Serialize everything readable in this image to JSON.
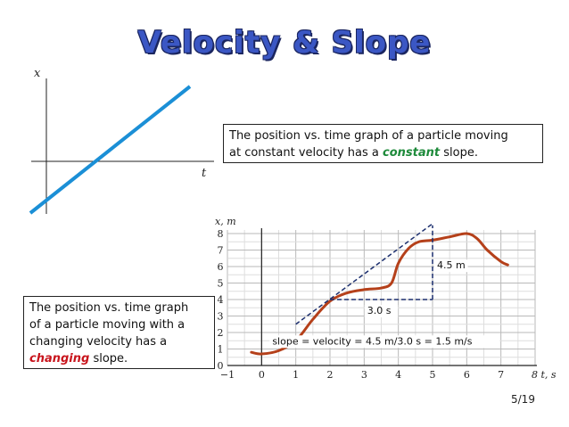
{
  "slide": {
    "title": "Velocity & Slope",
    "page_number": "5/19"
  },
  "top_graph": {
    "y_label": "x",
    "x_label": "t"
  },
  "box_constant": {
    "line1": "The position vs. time graph of a particle moving",
    "line2_pre": "at constant velocity has a ",
    "emphasis": "constant",
    "line2_post": " slope."
  },
  "box_changing": {
    "line1": "The position vs. time graph",
    "line2": "of a particle moving with a",
    "line3": "changing velocity has a",
    "emphasis": "changing",
    "line4_post": " slope."
  },
  "chart_data": {
    "type": "line",
    "xlabel": "t, s",
    "ylabel": "x, m",
    "xlim": [
      -1,
      8
    ],
    "ylim": [
      0,
      8
    ],
    "x_ticks": [
      -1,
      0,
      1,
      2,
      3,
      4,
      5,
      6,
      7,
      8
    ],
    "y_ticks": [
      0,
      1,
      2,
      3,
      4,
      5,
      6,
      7,
      8
    ],
    "grid": true,
    "series": [
      {
        "x": [
          -0.3,
          0.0,
          0.5,
          1.0,
          1.5,
          2.0,
          2.5,
          3.0,
          3.5,
          3.8,
          4.0,
          4.3,
          4.6,
          5.0,
          5.5,
          6.0,
          6.3,
          6.6,
          7.0,
          7.2
        ],
        "y": [
          0.8,
          0.7,
          0.9,
          1.5,
          2.8,
          3.9,
          4.4,
          4.6,
          4.7,
          5.0,
          6.2,
          7.1,
          7.5,
          7.6,
          7.8,
          8.0,
          7.7,
          7.0,
          6.3,
          6.1
        ],
        "color": "#b5401a"
      }
    ],
    "tangent_line": {
      "x": [
        1.0,
        5.0
      ],
      "y": [
        2.5,
        8.6
      ]
    },
    "slope_triangle": {
      "run": {
        "x": [
          2.0,
          5.0
        ],
        "y": 4.0,
        "label": "3.0 s"
      },
      "rise": {
        "x": 5.0,
        "y": [
          4.0,
          8.5
        ],
        "label": "4.5 m"
      }
    },
    "annotation": "slope = velocity = 4.5 m/3.0 s = 1.5 m/s"
  }
}
